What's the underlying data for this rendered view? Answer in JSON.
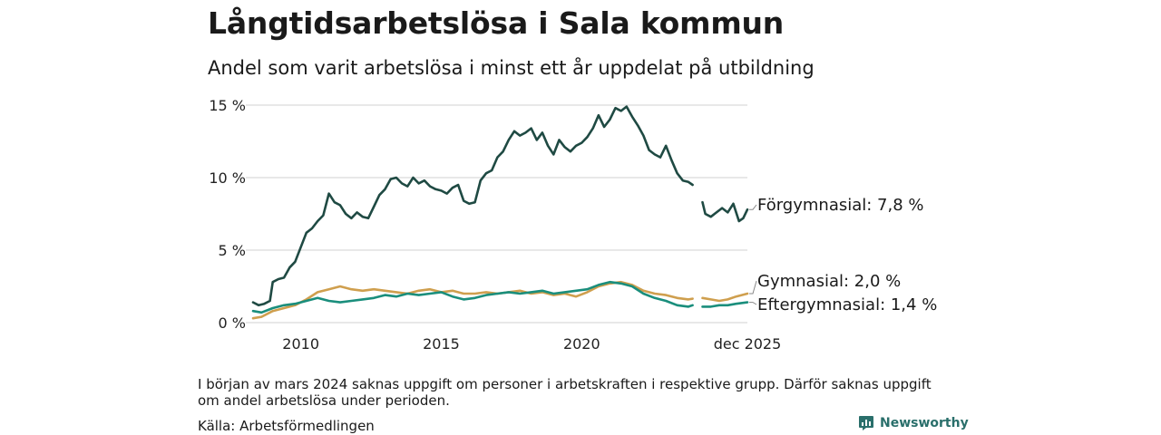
{
  "header": {
    "title": "Långtidsarbetslösa i Sala kommun",
    "subtitle": "Andel som varit arbetslösa i minst ett år uppdelat på utbildning"
  },
  "footer": {
    "note": "I början av mars 2024 saknas uppgift om personer i arbetskraften i respektive grupp. Därför saknas uppgift om andel arbetslösa under perioden.",
    "source": "Källa: Arbetsförmedlingen",
    "brand": "Newsworthy"
  },
  "colors": {
    "forgymnasial": "#1f4a43",
    "gymnasial": "#cf9f4e",
    "eftergymnasial": "#1a8e7c",
    "grid": "#d9d9d9",
    "brand": "#2a6f6b"
  },
  "chart_data": {
    "type": "line",
    "title": "Långtidsarbetslösa i Sala kommun",
    "xlabel": "",
    "ylabel": "",
    "ylim": [
      0,
      15
    ],
    "xlim": [
      2008.3,
      2025.9
    ],
    "y_ticks": [
      {
        "value": 0,
        "label": "0 %"
      },
      {
        "value": 5,
        "label": "5 %"
      },
      {
        "value": 10,
        "label": "10 %"
      },
      {
        "value": 15,
        "label": "15 %"
      }
    ],
    "x_ticks": [
      {
        "value": 2010,
        "label": "2010"
      },
      {
        "value": 2015,
        "label": "2015"
      },
      {
        "value": 2020,
        "label": "2020"
      },
      {
        "value": 2025.9,
        "label": "dec 2025"
      }
    ],
    "gap": [
      2024.0,
      2024.3
    ],
    "series": [
      {
        "name": "Förgymnasial",
        "end_label": "Förgymnasial: 7,8 %",
        "color_key": "forgymnasial",
        "points": [
          [
            2008.3,
            1.4
          ],
          [
            2008.5,
            1.2
          ],
          [
            2008.7,
            1.3
          ],
          [
            2008.9,
            1.5
          ],
          [
            2009.0,
            2.8
          ],
          [
            2009.2,
            3.0
          ],
          [
            2009.4,
            3.1
          ],
          [
            2009.6,
            3.8
          ],
          [
            2009.8,
            4.2
          ],
          [
            2010.0,
            5.2
          ],
          [
            2010.2,
            6.2
          ],
          [
            2010.4,
            6.5
          ],
          [
            2010.6,
            7.0
          ],
          [
            2010.8,
            7.4
          ],
          [
            2011.0,
            8.9
          ],
          [
            2011.2,
            8.3
          ],
          [
            2011.4,
            8.1
          ],
          [
            2011.6,
            7.5
          ],
          [
            2011.8,
            7.2
          ],
          [
            2012.0,
            7.6
          ],
          [
            2012.2,
            7.3
          ],
          [
            2012.4,
            7.2
          ],
          [
            2012.6,
            8.0
          ],
          [
            2012.8,
            8.8
          ],
          [
            2013.0,
            9.2
          ],
          [
            2013.2,
            9.9
          ],
          [
            2013.4,
            10.0
          ],
          [
            2013.6,
            9.6
          ],
          [
            2013.8,
            9.4
          ],
          [
            2014.0,
            10.0
          ],
          [
            2014.2,
            9.6
          ],
          [
            2014.4,
            9.8
          ],
          [
            2014.6,
            9.4
          ],
          [
            2014.8,
            9.2
          ],
          [
            2015.0,
            9.1
          ],
          [
            2015.2,
            8.9
          ],
          [
            2015.4,
            9.3
          ],
          [
            2015.6,
            9.5
          ],
          [
            2015.8,
            8.4
          ],
          [
            2016.0,
            8.2
          ],
          [
            2016.2,
            8.3
          ],
          [
            2016.4,
            9.8
          ],
          [
            2016.6,
            10.3
          ],
          [
            2016.8,
            10.5
          ],
          [
            2017.0,
            11.4
          ],
          [
            2017.2,
            11.8
          ],
          [
            2017.4,
            12.6
          ],
          [
            2017.6,
            13.2
          ],
          [
            2017.8,
            12.9
          ],
          [
            2018.0,
            13.1
          ],
          [
            2018.2,
            13.4
          ],
          [
            2018.4,
            12.6
          ],
          [
            2018.6,
            13.1
          ],
          [
            2018.8,
            12.2
          ],
          [
            2019.0,
            11.6
          ],
          [
            2019.2,
            12.6
          ],
          [
            2019.4,
            12.1
          ],
          [
            2019.6,
            11.8
          ],
          [
            2019.8,
            12.2
          ],
          [
            2020.0,
            12.4
          ],
          [
            2020.2,
            12.8
          ],
          [
            2020.4,
            13.4
          ],
          [
            2020.6,
            14.3
          ],
          [
            2020.8,
            13.5
          ],
          [
            2021.0,
            14.0
          ],
          [
            2021.2,
            14.8
          ],
          [
            2021.4,
            14.6
          ],
          [
            2021.6,
            14.9
          ],
          [
            2021.8,
            14.2
          ],
          [
            2022.0,
            13.6
          ],
          [
            2022.2,
            12.9
          ],
          [
            2022.4,
            11.9
          ],
          [
            2022.6,
            11.6
          ],
          [
            2022.8,
            11.4
          ],
          [
            2023.0,
            12.2
          ],
          [
            2023.2,
            11.2
          ],
          [
            2023.4,
            10.3
          ],
          [
            2023.6,
            9.8
          ],
          [
            2023.8,
            9.7
          ],
          [
            2023.95,
            9.5
          ]
        ],
        "points_after_gap": [
          [
            2024.3,
            8.3
          ],
          [
            2024.4,
            7.5
          ],
          [
            2024.6,
            7.3
          ],
          [
            2024.8,
            7.6
          ],
          [
            2025.0,
            7.9
          ],
          [
            2025.2,
            7.6
          ],
          [
            2025.4,
            8.2
          ],
          [
            2025.6,
            7.0
          ],
          [
            2025.75,
            7.2
          ],
          [
            2025.9,
            7.8
          ]
        ]
      },
      {
        "name": "Gymnasial",
        "end_label": "Gymnasial: 2,0 %",
        "color_key": "gymnasial",
        "points": [
          [
            2008.3,
            0.3
          ],
          [
            2008.6,
            0.4
          ],
          [
            2009.0,
            0.8
          ],
          [
            2009.4,
            1.0
          ],
          [
            2009.8,
            1.2
          ],
          [
            2010.2,
            1.6
          ],
          [
            2010.6,
            2.1
          ],
          [
            2011.0,
            2.3
          ],
          [
            2011.4,
            2.5
          ],
          [
            2011.8,
            2.3
          ],
          [
            2012.2,
            2.2
          ],
          [
            2012.6,
            2.3
          ],
          [
            2013.0,
            2.2
          ],
          [
            2013.4,
            2.1
          ],
          [
            2013.8,
            2.0
          ],
          [
            2014.2,
            2.2
          ],
          [
            2014.6,
            2.3
          ],
          [
            2015.0,
            2.1
          ],
          [
            2015.4,
            2.2
          ],
          [
            2015.8,
            2.0
          ],
          [
            2016.2,
            2.0
          ],
          [
            2016.6,
            2.1
          ],
          [
            2017.0,
            2.0
          ],
          [
            2017.4,
            2.1
          ],
          [
            2017.8,
            2.2
          ],
          [
            2018.2,
            2.0
          ],
          [
            2018.6,
            2.1
          ],
          [
            2019.0,
            1.9
          ],
          [
            2019.4,
            2.0
          ],
          [
            2019.8,
            1.8
          ],
          [
            2020.2,
            2.1
          ],
          [
            2020.6,
            2.5
          ],
          [
            2021.0,
            2.7
          ],
          [
            2021.4,
            2.8
          ],
          [
            2021.8,
            2.6
          ],
          [
            2022.2,
            2.2
          ],
          [
            2022.6,
            2.0
          ],
          [
            2023.0,
            1.9
          ],
          [
            2023.4,
            1.7
          ],
          [
            2023.8,
            1.6
          ],
          [
            2023.95,
            1.65
          ]
        ],
        "points_after_gap": [
          [
            2024.3,
            1.7
          ],
          [
            2024.6,
            1.6
          ],
          [
            2024.9,
            1.5
          ],
          [
            2025.2,
            1.6
          ],
          [
            2025.5,
            1.8
          ],
          [
            2025.9,
            2.0
          ]
        ]
      },
      {
        "name": "Eftergymnasial",
        "end_label": "Eftergymnasial: 1,4 %",
        "color_key": "eftergymnasial",
        "points": [
          [
            2008.3,
            0.8
          ],
          [
            2008.6,
            0.7
          ],
          [
            2009.0,
            1.0
          ],
          [
            2009.4,
            1.2
          ],
          [
            2009.8,
            1.3
          ],
          [
            2010.2,
            1.5
          ],
          [
            2010.6,
            1.7
          ],
          [
            2011.0,
            1.5
          ],
          [
            2011.4,
            1.4
          ],
          [
            2011.8,
            1.5
          ],
          [
            2012.2,
            1.6
          ],
          [
            2012.6,
            1.7
          ],
          [
            2013.0,
            1.9
          ],
          [
            2013.4,
            1.8
          ],
          [
            2013.8,
            2.0
          ],
          [
            2014.2,
            1.9
          ],
          [
            2014.6,
            2.0
          ],
          [
            2015.0,
            2.1
          ],
          [
            2015.4,
            1.8
          ],
          [
            2015.8,
            1.6
          ],
          [
            2016.2,
            1.7
          ],
          [
            2016.6,
            1.9
          ],
          [
            2017.0,
            2.0
          ],
          [
            2017.4,
            2.1
          ],
          [
            2017.8,
            2.0
          ],
          [
            2018.2,
            2.1
          ],
          [
            2018.6,
            2.2
          ],
          [
            2019.0,
            2.0
          ],
          [
            2019.4,
            2.1
          ],
          [
            2019.8,
            2.2
          ],
          [
            2020.2,
            2.3
          ],
          [
            2020.6,
            2.6
          ],
          [
            2021.0,
            2.8
          ],
          [
            2021.4,
            2.7
          ],
          [
            2021.8,
            2.5
          ],
          [
            2022.2,
            2.0
          ],
          [
            2022.6,
            1.7
          ],
          [
            2023.0,
            1.5
          ],
          [
            2023.4,
            1.2
          ],
          [
            2023.8,
            1.1
          ],
          [
            2023.95,
            1.2
          ]
        ],
        "points_after_gap": [
          [
            2024.3,
            1.1
          ],
          [
            2024.6,
            1.1
          ],
          [
            2024.9,
            1.2
          ],
          [
            2025.2,
            1.2
          ],
          [
            2025.5,
            1.3
          ],
          [
            2025.9,
            1.4
          ]
        ]
      }
    ]
  }
}
